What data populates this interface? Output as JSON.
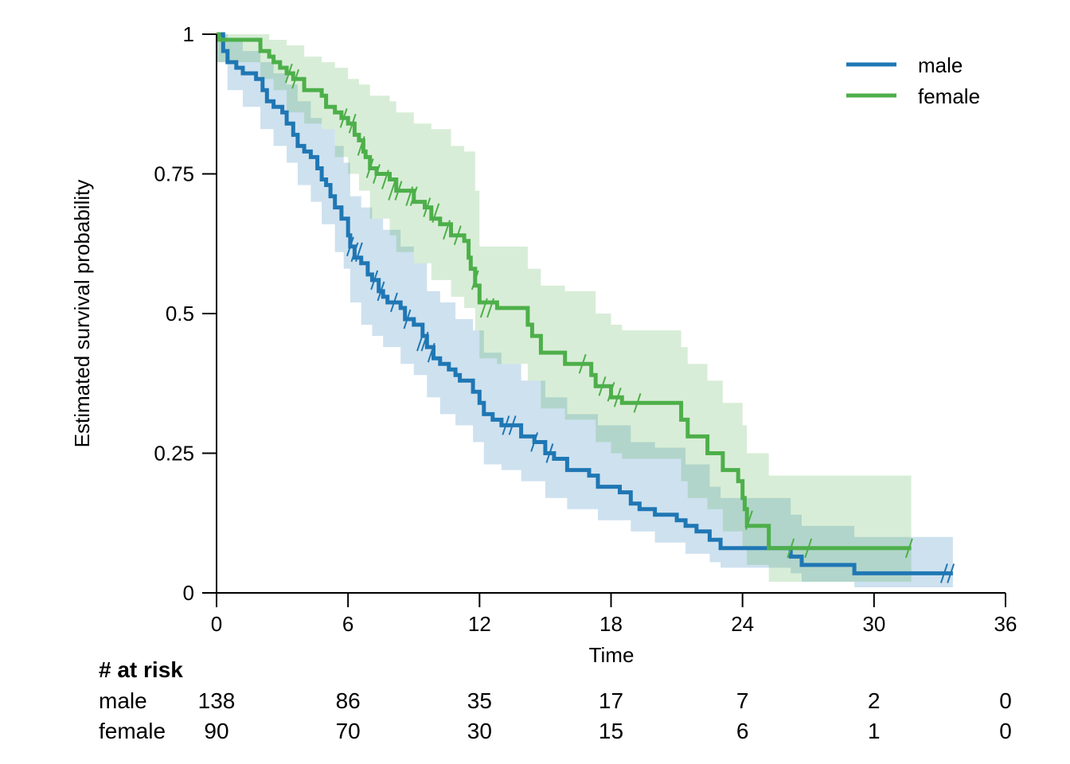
{
  "chart_data": {
    "type": "line",
    "subtype": "kaplan-meier",
    "title": "",
    "xlabel": "Time",
    "ylabel": "Estimated survival probability",
    "xlim": [
      0,
      36
    ],
    "ylim": [
      0,
      1
    ],
    "x_ticks": [
      0,
      6,
      12,
      18,
      24,
      30,
      36
    ],
    "x_tick_labels": [
      "0",
      "6",
      "12",
      "18",
      "24",
      "30",
      "36"
    ],
    "y_ticks": [
      0,
      0.25,
      0.5,
      0.75,
      1
    ],
    "y_tick_labels": [
      "0",
      "0.25",
      "0.5",
      "0.75",
      "1"
    ],
    "grid": false,
    "legend_position": "top-right",
    "series": [
      {
        "name": "male",
        "color": "#1f77b4",
        "band_color": "#1f77b4",
        "steps": [
          [
            0,
            1
          ],
          [
            0.3,
            0.97
          ],
          [
            0.5,
            0.95
          ],
          [
            0.9,
            0.94
          ],
          [
            1.2,
            0.93
          ],
          [
            1.8,
            0.92
          ],
          [
            2.1,
            0.9
          ],
          [
            2.3,
            0.88
          ],
          [
            2.6,
            0.87
          ],
          [
            3.0,
            0.86
          ],
          [
            3.2,
            0.84
          ],
          [
            3.5,
            0.82
          ],
          [
            3.7,
            0.8
          ],
          [
            4.0,
            0.79
          ],
          [
            4.3,
            0.78
          ],
          [
            4.6,
            0.76
          ],
          [
            4.8,
            0.74
          ],
          [
            5.0,
            0.73
          ],
          [
            5.2,
            0.71
          ],
          [
            5.4,
            0.69
          ],
          [
            5.7,
            0.67
          ],
          [
            6.0,
            0.64
          ],
          [
            6.1,
            0.62
          ],
          [
            6.3,
            0.6
          ],
          [
            6.6,
            0.59
          ],
          [
            6.9,
            0.57
          ],
          [
            7.1,
            0.56
          ],
          [
            7.4,
            0.54
          ],
          [
            7.6,
            0.53
          ],
          [
            7.8,
            0.52
          ],
          [
            8.4,
            0.51
          ],
          [
            8.6,
            0.49
          ],
          [
            9.0,
            0.48
          ],
          [
            9.4,
            0.46
          ],
          [
            9.6,
            0.44
          ],
          [
            9.9,
            0.42
          ],
          [
            10.2,
            0.41
          ],
          [
            10.6,
            0.4
          ],
          [
            10.9,
            0.39
          ],
          [
            11.1,
            0.38
          ],
          [
            11.7,
            0.36
          ],
          [
            12.0,
            0.34
          ],
          [
            12.2,
            0.32
          ],
          [
            12.6,
            0.31
          ],
          [
            13.0,
            0.3
          ],
          [
            13.9,
            0.28
          ],
          [
            14.5,
            0.27
          ],
          [
            15.0,
            0.25
          ],
          [
            15.4,
            0.24
          ],
          [
            16.0,
            0.22
          ],
          [
            17.0,
            0.21
          ],
          [
            17.4,
            0.19
          ],
          [
            18.4,
            0.18
          ],
          [
            18.9,
            0.16
          ],
          [
            19.3,
            0.15
          ],
          [
            20.0,
            0.14
          ],
          [
            21.0,
            0.13
          ],
          [
            21.4,
            0.12
          ],
          [
            21.9,
            0.11
          ],
          [
            22.5,
            0.095
          ],
          [
            23.0,
            0.08
          ],
          [
            26.2,
            0.065
          ],
          [
            26.7,
            0.05
          ],
          [
            29.1,
            0.035
          ],
          [
            33.6,
            0.035
          ]
        ],
        "lower": [
          [
            0,
            0.95
          ],
          [
            0.5,
            0.9
          ],
          [
            1.2,
            0.87
          ],
          [
            2.0,
            0.83
          ],
          [
            2.6,
            0.8
          ],
          [
            3.2,
            0.77
          ],
          [
            3.7,
            0.73
          ],
          [
            4.3,
            0.7
          ],
          [
            4.8,
            0.66
          ],
          [
            5.4,
            0.61
          ],
          [
            5.8,
            0.58
          ],
          [
            6.1,
            0.52
          ],
          [
            6.6,
            0.48
          ],
          [
            7.1,
            0.46
          ],
          [
            7.6,
            0.44
          ],
          [
            8.4,
            0.41
          ],
          [
            9.0,
            0.39
          ],
          [
            9.6,
            0.35
          ],
          [
            10.2,
            0.32
          ],
          [
            10.9,
            0.3
          ],
          [
            11.7,
            0.27
          ],
          [
            12.2,
            0.23
          ],
          [
            13.0,
            0.22
          ],
          [
            13.9,
            0.2
          ],
          [
            15.0,
            0.17
          ],
          [
            16.0,
            0.15
          ],
          [
            17.4,
            0.13
          ],
          [
            18.9,
            0.11
          ],
          [
            20.0,
            0.09
          ],
          [
            21.4,
            0.07
          ],
          [
            22.5,
            0.055
          ],
          [
            23.0,
            0.045
          ],
          [
            26.2,
            0.035
          ],
          [
            26.7,
            0.02
          ],
          [
            29.1,
            0.01
          ],
          [
            33.6,
            0.01
          ]
        ],
        "upper": [
          [
            0,
            1
          ],
          [
            0.5,
            0.99
          ],
          [
            1.2,
            0.97
          ],
          [
            2.0,
            0.95
          ],
          [
            2.6,
            0.93
          ],
          [
            3.2,
            0.91
          ],
          [
            3.7,
            0.88
          ],
          [
            4.3,
            0.85
          ],
          [
            4.8,
            0.83
          ],
          [
            5.4,
            0.8
          ],
          [
            5.8,
            0.77
          ],
          [
            6.1,
            0.71
          ],
          [
            6.6,
            0.69
          ],
          [
            7.1,
            0.67
          ],
          [
            7.6,
            0.65
          ],
          [
            8.4,
            0.62
          ],
          [
            9.0,
            0.59
          ],
          [
            9.6,
            0.54
          ],
          [
            10.2,
            0.52
          ],
          [
            10.9,
            0.49
          ],
          [
            11.7,
            0.47
          ],
          [
            12.2,
            0.43
          ],
          [
            13.0,
            0.41
          ],
          [
            13.9,
            0.38
          ],
          [
            15.0,
            0.35
          ],
          [
            16.0,
            0.32
          ],
          [
            17.4,
            0.3
          ],
          [
            18.9,
            0.27
          ],
          [
            20.0,
            0.26
          ],
          [
            21.4,
            0.23
          ],
          [
            22.5,
            0.19
          ],
          [
            23.0,
            0.17
          ],
          [
            26.2,
            0.14
          ],
          [
            26.7,
            0.12
          ],
          [
            29.1,
            0.1
          ],
          [
            33.6,
            0.1
          ]
        ],
        "censored": [
          [
            6.1,
            0.62
          ],
          [
            6.3,
            0.61
          ],
          [
            6.5,
            0.61
          ],
          [
            7.2,
            0.56
          ],
          [
            7.5,
            0.54
          ],
          [
            8.1,
            0.52
          ],
          [
            8.7,
            0.49
          ],
          [
            9.3,
            0.45
          ],
          [
            9.5,
            0.45
          ],
          [
            9.8,
            0.43
          ],
          [
            13.2,
            0.3
          ],
          [
            13.5,
            0.3
          ],
          [
            14.5,
            0.27
          ],
          [
            15.2,
            0.25
          ],
          [
            33.2,
            0.035
          ],
          [
            33.5,
            0.035
          ]
        ]
      },
      {
        "name": "female",
        "color": "#4daf4a",
        "band_color": "#4daf4a",
        "steps": [
          [
            0,
            1
          ],
          [
            0.1,
            0.99
          ],
          [
            2.0,
            0.97
          ],
          [
            2.4,
            0.96
          ],
          [
            2.6,
            0.95
          ],
          [
            2.9,
            0.94
          ],
          [
            3.2,
            0.93
          ],
          [
            3.5,
            0.92
          ],
          [
            4.0,
            0.9
          ],
          [
            4.8,
            0.89
          ],
          [
            5.0,
            0.87
          ],
          [
            5.4,
            0.86
          ],
          [
            5.7,
            0.85
          ],
          [
            6.0,
            0.84
          ],
          [
            6.3,
            0.82
          ],
          [
            6.5,
            0.81
          ],
          [
            6.7,
            0.79
          ],
          [
            6.8,
            0.78
          ],
          [
            7.0,
            0.76
          ],
          [
            7.3,
            0.75
          ],
          [
            7.9,
            0.74
          ],
          [
            8.2,
            0.72
          ],
          [
            9.0,
            0.7
          ],
          [
            9.5,
            0.69
          ],
          [
            9.8,
            0.67
          ],
          [
            10.2,
            0.66
          ],
          [
            10.7,
            0.64
          ],
          [
            11.3,
            0.63
          ],
          [
            11.5,
            0.6
          ],
          [
            11.6,
            0.58
          ],
          [
            11.8,
            0.55
          ],
          [
            12.0,
            0.52
          ],
          [
            12.8,
            0.51
          ],
          [
            14.2,
            0.48
          ],
          [
            14.4,
            0.46
          ],
          [
            14.8,
            0.43
          ],
          [
            15.9,
            0.41
          ],
          [
            17.1,
            0.39
          ],
          [
            17.3,
            0.37
          ],
          [
            18.0,
            0.35
          ],
          [
            18.5,
            0.34
          ],
          [
            21.2,
            0.31
          ],
          [
            21.5,
            0.28
          ],
          [
            22.4,
            0.25
          ],
          [
            23.1,
            0.22
          ],
          [
            23.8,
            0.2
          ],
          [
            24.0,
            0.17
          ],
          [
            24.1,
            0.15
          ],
          [
            24.2,
            0.12
          ],
          [
            25.2,
            0.08
          ],
          [
            31.7,
            0.08
          ]
        ],
        "lower": [
          [
            0,
            0.95
          ],
          [
            2.0,
            0.92
          ],
          [
            2.6,
            0.9
          ],
          [
            3.2,
            0.86
          ],
          [
            4.0,
            0.84
          ],
          [
            4.8,
            0.83
          ],
          [
            5.4,
            0.78
          ],
          [
            6.0,
            0.75
          ],
          [
            6.5,
            0.72
          ],
          [
            7.0,
            0.67
          ],
          [
            7.9,
            0.64
          ],
          [
            8.2,
            0.61
          ],
          [
            9.0,
            0.59
          ],
          [
            9.8,
            0.56
          ],
          [
            10.7,
            0.53
          ],
          [
            11.3,
            0.51
          ],
          [
            11.8,
            0.47
          ],
          [
            12.0,
            0.42
          ],
          [
            12.8,
            0.41
          ],
          [
            14.2,
            0.38
          ],
          [
            14.8,
            0.33
          ],
          [
            15.9,
            0.31
          ],
          [
            17.3,
            0.27
          ],
          [
            18.0,
            0.25
          ],
          [
            18.5,
            0.24
          ],
          [
            21.2,
            0.2
          ],
          [
            21.5,
            0.17
          ],
          [
            22.4,
            0.15
          ],
          [
            23.1,
            0.11
          ],
          [
            24.0,
            0.08
          ],
          [
            24.2,
            0.05
          ],
          [
            25.2,
            0.02
          ],
          [
            31.7,
            0.02
          ]
        ],
        "upper": [
          [
            0,
            1
          ],
          [
            2.0,
            1
          ],
          [
            2.4,
            0.99
          ],
          [
            3.2,
            0.98
          ],
          [
            4.0,
            0.96
          ],
          [
            4.8,
            0.95
          ],
          [
            5.4,
            0.94
          ],
          [
            6.0,
            0.92
          ],
          [
            6.5,
            0.91
          ],
          [
            7.0,
            0.89
          ],
          [
            7.9,
            0.88
          ],
          [
            8.2,
            0.86
          ],
          [
            9.0,
            0.84
          ],
          [
            9.8,
            0.83
          ],
          [
            10.7,
            0.8
          ],
          [
            11.3,
            0.79
          ],
          [
            11.8,
            0.72
          ],
          [
            12.0,
            0.62
          ],
          [
            12.8,
            0.62
          ],
          [
            14.2,
            0.58
          ],
          [
            14.8,
            0.55
          ],
          [
            15.9,
            0.54
          ],
          [
            17.3,
            0.5
          ],
          [
            18.0,
            0.48
          ],
          [
            18.5,
            0.47
          ],
          [
            21.2,
            0.44
          ],
          [
            21.5,
            0.41
          ],
          [
            22.4,
            0.38
          ],
          [
            23.1,
            0.34
          ],
          [
            24.0,
            0.3
          ],
          [
            24.2,
            0.25
          ],
          [
            25.2,
            0.21
          ],
          [
            31.7,
            0.21
          ]
        ],
        "censored": [
          [
            3.3,
            0.93
          ],
          [
            3.6,
            0.92
          ],
          [
            5.8,
            0.85
          ],
          [
            6.2,
            0.84
          ],
          [
            6.6,
            0.8
          ],
          [
            7.0,
            0.76
          ],
          [
            7.3,
            0.75
          ],
          [
            7.7,
            0.74
          ],
          [
            8.0,
            0.72
          ],
          [
            8.3,
            0.72
          ],
          [
            8.8,
            0.71
          ],
          [
            9.0,
            0.71
          ],
          [
            9.6,
            0.69
          ],
          [
            10.0,
            0.68
          ],
          [
            10.5,
            0.65
          ],
          [
            11.0,
            0.64
          ],
          [
            11.8,
            0.56
          ],
          [
            12.2,
            0.51
          ],
          [
            12.5,
            0.51
          ],
          [
            16.7,
            0.41
          ],
          [
            17.6,
            0.37
          ],
          [
            18.0,
            0.36
          ],
          [
            18.3,
            0.35
          ],
          [
            19.2,
            0.34
          ],
          [
            24.3,
            0.13
          ],
          [
            26.2,
            0.08
          ],
          [
            27.0,
            0.08
          ],
          [
            31.6,
            0.08
          ]
        ]
      }
    ],
    "risk_table": {
      "title": "# at risk",
      "times": [
        0,
        6,
        12,
        18,
        24,
        30,
        36
      ],
      "rows": [
        {
          "label": "male",
          "values": [
            "138",
            "86",
            "35",
            "17",
            "7",
            "2",
            "0"
          ]
        },
        {
          "label": "female",
          "values": [
            "90",
            "70",
            "30",
            "15",
            "6",
            "1",
            "0"
          ]
        }
      ]
    }
  }
}
